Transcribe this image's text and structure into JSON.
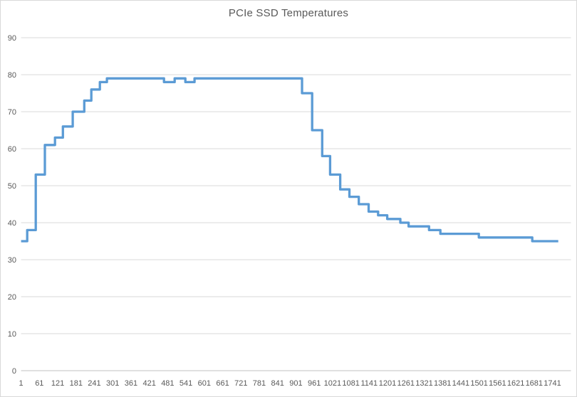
{
  "chart": {
    "title": "PCIe SSD Temperatures"
  },
  "colors": {
    "background": "#FFFFFF",
    "border": "#D9D9D9",
    "gridline": "#D9D9D9",
    "axis_line": "#C0C0C0",
    "tick_label": "#595959",
    "title": "#595959",
    "line": "#5B9BD5"
  },
  "chart_data": {
    "type": "line",
    "title": "PCIe SSD Temperatures",
    "xlabel": "",
    "ylabel": "",
    "grid": true,
    "legend": "none",
    "line_style": "step-after",
    "x_axis": {
      "tick_values": [
        1,
        61,
        121,
        181,
        241,
        301,
        361,
        421,
        481,
        541,
        601,
        661,
        721,
        781,
        841,
        901,
        961,
        1021,
        1081,
        1141,
        1201,
        1261,
        1321,
        1381,
        1441,
        1501,
        1561,
        1621,
        1681,
        1741
      ],
      "tick_labels": [
        "1",
        "61",
        "121",
        "181",
        "241",
        "301",
        "361",
        "421",
        "481",
        "541",
        "601",
        "661",
        "721",
        "781",
        "841",
        "901",
        "961",
        "1021",
        "1081",
        "1141",
        "1201",
        "1261",
        "1321",
        "1381",
        "1441",
        "1501",
        "1561",
        "1621",
        "1681",
        "1741"
      ],
      "range": [
        1,
        1800
      ]
    },
    "y_axis": {
      "tick_values": [
        0,
        10,
        20,
        30,
        40,
        50,
        60,
        70,
        80,
        90
      ],
      "tick_labels": [
        "0",
        "10",
        "20",
        "30",
        "40",
        "50",
        "60",
        "70",
        "80",
        "90"
      ],
      "range": [
        0,
        90
      ]
    },
    "series": [
      {
        "color": "#5B9BD5",
        "step_points": [
          [
            1,
            35
          ],
          [
            21,
            38
          ],
          [
            49,
            53
          ],
          [
            79,
            61
          ],
          [
            112,
            63
          ],
          [
            138,
            66
          ],
          [
            170,
            70
          ],
          [
            208,
            73
          ],
          [
            231,
            76
          ],
          [
            259,
            78
          ],
          [
            282,
            79
          ],
          [
            469,
            78
          ],
          [
            504,
            79
          ],
          [
            539,
            78
          ],
          [
            569,
            79
          ],
          [
            921,
            75
          ],
          [
            954,
            65
          ],
          [
            987,
            58
          ],
          [
            1013,
            53
          ],
          [
            1046,
            49
          ],
          [
            1076,
            47
          ],
          [
            1107,
            45
          ],
          [
            1139,
            43
          ],
          [
            1170,
            42
          ],
          [
            1200,
            41
          ],
          [
            1243,
            40
          ],
          [
            1270,
            39
          ],
          [
            1337,
            38
          ],
          [
            1374,
            37
          ],
          [
            1500,
            36
          ],
          [
            1675,
            35
          ],
          [
            1760,
            35
          ]
        ]
      }
    ]
  }
}
